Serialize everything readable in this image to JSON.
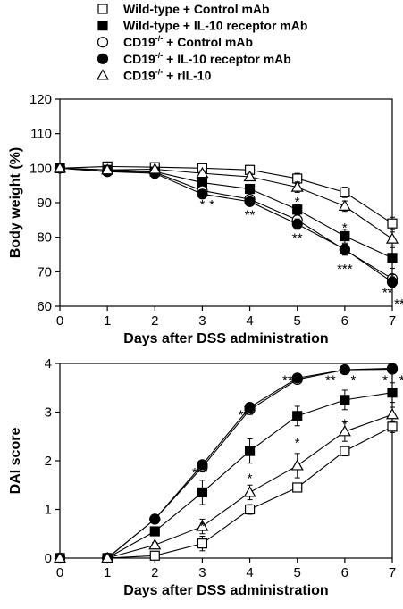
{
  "legend": {
    "items": [
      {
        "key": "wt_ctrl",
        "text": "Wild-type + Control mAb",
        "marker": "square",
        "fill": "#ffffff"
      },
      {
        "key": "wt_il10r",
        "text": "Wild-type + IL-10 receptor mAb",
        "marker": "square",
        "fill": "#000000"
      },
      {
        "key": "cd19_ctrl",
        "pre": "CD19",
        "sup": "-/-",
        "post": " + Control mAb",
        "marker": "circle",
        "fill": "#ffffff"
      },
      {
        "key": "cd19_il10r",
        "pre": "CD19",
        "sup": "-/-",
        "post": " + IL-10 receptor mAb",
        "marker": "circle",
        "fill": "#000000"
      },
      {
        "key": "cd19_ril10",
        "pre": "CD19",
        "sup": "-/-",
        "post": " + rIL-10",
        "marker": "triangle",
        "fill": "#ffffff"
      }
    ]
  },
  "chart_data": [
    {
      "type": "line",
      "ylabel": "Body weight (%)",
      "xlabel": "Days after DSS administration",
      "xlim": [
        0,
        7
      ],
      "ylim": [
        60,
        120
      ],
      "x_ticks": [
        "0",
        "1",
        "2",
        "3",
        "4",
        "5",
        "6",
        "7"
      ],
      "y_ticks": [
        "60",
        "70",
        "80",
        "90",
        "100",
        "110",
        "120"
      ],
      "x": [
        0,
        1,
        2,
        3,
        4,
        5,
        6,
        7
      ],
      "series": [
        {
          "key": "wt_ctrl",
          "values": [
            100,
            100.5,
            100.3,
            100,
            99.5,
            97,
            93,
            84
          ],
          "errors": [
            0.5,
            0.5,
            0.5,
            0.6,
            0.8,
            1.5,
            1.5,
            1.8
          ]
        },
        {
          "key": "wt_il10r",
          "values": [
            100,
            99.5,
            99,
            95.8,
            94,
            88,
            80.3,
            74
          ],
          "errors": [
            0.5,
            0.5,
            0.6,
            0.8,
            1,
            1.5,
            2,
            3
          ]
        },
        {
          "key": "cd19_ctrl",
          "values": [
            100,
            99,
            98.8,
            93.5,
            91,
            85,
            76.3,
            68
          ],
          "errors": [
            0.5,
            0.5,
            0.6,
            1,
            1,
            1.5,
            1.5,
            1
          ]
        },
        {
          "key": "cd19_il10r",
          "values": [
            100,
            99,
            98.5,
            92.5,
            90.3,
            83.8,
            76.5,
            67
          ],
          "errors": [
            0.5,
            0.5,
            0.6,
            1,
            1,
            1.5,
            1.5,
            1.5
          ]
        },
        {
          "key": "cd19_ril10",
          "values": [
            100,
            99.5,
            99.7,
            98.5,
            97.5,
            94.5,
            89,
            79.5
          ],
          "errors": [
            0.5,
            0.5,
            0.6,
            0.8,
            1,
            1.5,
            1.5,
            2
          ]
        }
      ],
      "annotations": [
        {
          "x": 3,
          "y": 90.3,
          "text": "*"
        },
        {
          "x": 3.2,
          "y": 90.3,
          "text": "*"
        },
        {
          "x": 4.05,
          "y": 94.3,
          "text": "*"
        },
        {
          "x": 4,
          "y": 87.3,
          "text": "**"
        },
        {
          "x": 5,
          "y": 91.0,
          "text": "*"
        },
        {
          "x": 5,
          "y": 80.5,
          "text": "**"
        },
        {
          "x": 6,
          "y": 83.5,
          "text": "*"
        },
        {
          "x": 6,
          "y": 71.7,
          "text": "***"
        },
        {
          "x": 7,
          "y": 69.2,
          "text": "*"
        },
        {
          "x": 6.9,
          "y": 64.8,
          "text": "**"
        },
        {
          "x": 7.15,
          "y": 61.5,
          "text": "**"
        }
      ]
    },
    {
      "type": "line",
      "ylabel": "DAI score",
      "xlabel": "Days after DSS administration",
      "xlim": [
        0,
        7
      ],
      "ylim": [
        0,
        4
      ],
      "x_ticks": [
        "0",
        "1",
        "2",
        "3",
        "4",
        "5",
        "6",
        "7"
      ],
      "y_ticks": [
        "0",
        "1",
        "2",
        "3",
        "4"
      ],
      "x": [
        0,
        1,
        2,
        3,
        4,
        5,
        6,
        7
      ],
      "series": [
        {
          "key": "wt_ctrl",
          "values": [
            0,
            0,
            0.05,
            0.3,
            1.0,
            1.45,
            2.2,
            2.7
          ],
          "errors": [
            0,
            0,
            0.05,
            0.15,
            0.1,
            0.08,
            0.1,
            0.12
          ]
        },
        {
          "key": "wt_il10r",
          "values": [
            0,
            0,
            0.55,
            1.35,
            2.2,
            2.92,
            3.25,
            3.4
          ],
          "errors": [
            0,
            0,
            0.08,
            0.25,
            0.25,
            0.2,
            0.2,
            0.2
          ]
        },
        {
          "key": "cd19_ctrl",
          "values": [
            0,
            0,
            0.8,
            1.87,
            3.05,
            3.67,
            3.87,
            3.88
          ],
          "errors": [
            0,
            0,
            0.05,
            0.05,
            0.05,
            0.05,
            0.05,
            0.05
          ]
        },
        {
          "key": "cd19_il10r",
          "values": [
            0,
            0,
            0.8,
            1.92,
            3.1,
            3.7,
            3.87,
            3.9
          ],
          "errors": [
            0,
            0,
            0.05,
            0.05,
            0.05,
            0.05,
            0.05,
            0.05
          ]
        },
        {
          "key": "cd19_ril10",
          "values": [
            0,
            0,
            0.27,
            0.65,
            1.35,
            1.9,
            2.6,
            2.95
          ],
          "errors": [
            0,
            0,
            0.05,
            0.15,
            0.15,
            0.25,
            0.2,
            0.15
          ]
        }
      ],
      "annotations": [
        {
          "x": 2.95,
          "y": 1.82,
          "text": "***"
        },
        {
          "x": 3,
          "y": 0.72,
          "text": "*"
        },
        {
          "x": 3.92,
          "y": 3.0,
          "text": "***"
        },
        {
          "x": 4,
          "y": 1.7,
          "text": "*"
        },
        {
          "x": 4.85,
          "y": 3.72,
          "text": "***"
        },
        {
          "x": 5,
          "y": 2.42,
          "text": "*"
        },
        {
          "x": 5.7,
          "y": 3.72,
          "text": "**"
        },
        {
          "x": 6.18,
          "y": 3.72,
          "text": "*"
        },
        {
          "x": 6,
          "y": 2.82,
          "text": "*"
        },
        {
          "x": 6.85,
          "y": 3.72,
          "text": "*"
        },
        {
          "x": 7.2,
          "y": 3.72,
          "text": "*"
        }
      ]
    }
  ]
}
